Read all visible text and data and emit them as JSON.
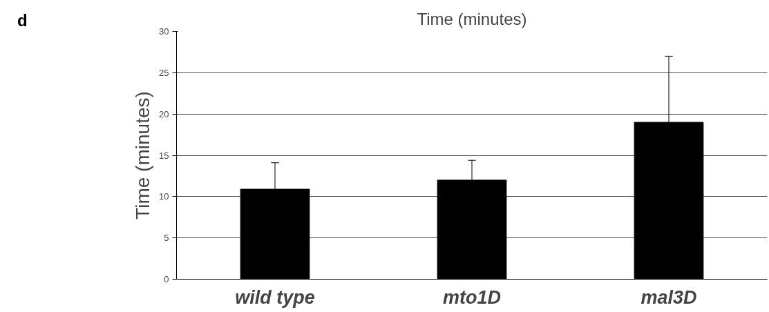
{
  "chart_data": {
    "type": "bar",
    "title": "Time (minutes)",
    "ylabel": "Time (minutes)",
    "annotations": [
      "d"
    ],
    "categories": [
      "wild type",
      "mto1D",
      "mal3D"
    ],
    "color": "#000000",
    "values": [
      10.9,
      12.0,
      19.0
    ],
    "errors": [
      [
        10.9,
        14.1
      ],
      [
        12.0,
        14.4
      ],
      [
        19.0,
        27.0
      ]
    ],
    "ylim": [
      0,
      30
    ],
    "yticks": [
      0,
      5,
      10,
      15,
      20,
      25,
      30
    ],
    "grid": "y"
  }
}
